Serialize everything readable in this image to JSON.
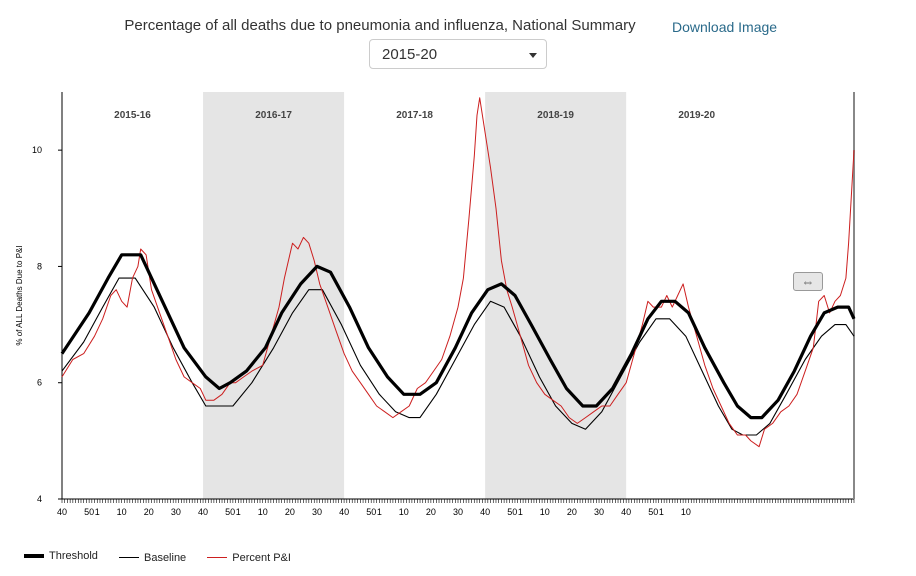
{
  "header": {
    "title": "Percentage of all deaths due to pneumonia and influenza, National Summary",
    "download_label": "Download Image",
    "season_select_value": "2015-20"
  },
  "legend": {
    "threshold": "Threshold",
    "baseline": "Baseline",
    "percent": "Percent P&I"
  },
  "handle_glyph": "⇔",
  "chart_data": {
    "type": "line",
    "ylabel": "% of ALL Deaths Due to P&I",
    "ylim": [
      4,
      11
    ],
    "yticks": [
      4,
      6,
      8,
      10
    ],
    "xticks_week_labels": [
      "40",
      "50",
      "1",
      "10",
      "20",
      "30",
      "40",
      "50",
      "1",
      "10",
      "20",
      "30",
      "40",
      "50",
      "1",
      "10",
      "20",
      "30",
      "40",
      "50",
      "1",
      "10",
      "20",
      "30",
      "40",
      "50",
      "1",
      "10"
    ],
    "seasons": [
      {
        "label": "2015-16",
        "shaded": false
      },
      {
        "label": "2016-17",
        "shaded": true
      },
      {
        "label": "2017-18",
        "shaded": false
      },
      {
        "label": "2018-19",
        "shaded": true
      },
      {
        "label": "2019-20",
        "shaded": false
      }
    ],
    "colors": {
      "threshold": "#000000",
      "baseline": "#000000",
      "percent": "#cc1f1f",
      "shade": "#e5e5e5"
    },
    "series": [
      {
        "name": "Threshold",
        "points": [
          [
            0,
            6.5
          ],
          [
            10,
            7.2
          ],
          [
            17,
            7.8
          ],
          [
            22,
            8.2
          ],
          [
            29,
            8.2
          ],
          [
            37,
            7.4
          ],
          [
            45,
            6.6
          ],
          [
            53,
            6.1
          ],
          [
            58,
            5.9
          ],
          [
            62,
            6.0
          ],
          [
            68,
            6.2
          ],
          [
            75,
            6.6
          ],
          [
            81,
            7.2
          ],
          [
            88,
            7.7
          ],
          [
            94,
            8.0
          ],
          [
            99,
            7.9
          ],
          [
            106,
            7.3
          ],
          [
            113,
            6.6
          ],
          [
            120,
            6.1
          ],
          [
            126,
            5.8
          ],
          [
            132,
            5.8
          ],
          [
            138,
            6.0
          ],
          [
            145,
            6.6
          ],
          [
            151,
            7.2
          ],
          [
            157,
            7.6
          ],
          [
            162,
            7.7
          ],
          [
            167,
            7.5
          ],
          [
            173,
            7.0
          ],
          [
            180,
            6.4
          ],
          [
            186,
            5.9
          ],
          [
            192,
            5.6
          ],
          [
            197,
            5.6
          ],
          [
            203,
            5.9
          ],
          [
            210,
            6.5
          ],
          [
            216,
            7.1
          ],
          [
            221,
            7.4
          ],
          [
            226,
            7.4
          ],
          [
            231,
            7.2
          ],
          [
            237,
            6.6
          ],
          [
            244,
            6.0
          ],
          [
            249,
            5.6
          ],
          [
            254,
            5.4
          ],
          [
            258,
            5.4
          ],
          [
            264,
            5.7
          ],
          [
            270,
            6.2
          ],
          [
            276,
            6.8
          ],
          [
            281,
            7.2
          ],
          [
            286,
            7.3
          ],
          [
            290,
            7.3
          ],
          [
            292,
            7.1
          ]
        ]
      },
      {
        "name": "Baseline",
        "points": [
          [
            0,
            6.2
          ],
          [
            8,
            6.7
          ],
          [
            15,
            7.3
          ],
          [
            21,
            7.8
          ],
          [
            27,
            7.8
          ],
          [
            34,
            7.3
          ],
          [
            41,
            6.6
          ],
          [
            48,
            6.0
          ],
          [
            53,
            5.6
          ],
          [
            63,
            5.6
          ],
          [
            70,
            6.0
          ],
          [
            78,
            6.6
          ],
          [
            85,
            7.2
          ],
          [
            91,
            7.6
          ],
          [
            96,
            7.6
          ],
          [
            103,
            7.0
          ],
          [
            110,
            6.3
          ],
          [
            117,
            5.8
          ],
          [
            123,
            5.5
          ],
          [
            128,
            5.4
          ],
          [
            132,
            5.4
          ],
          [
            138,
            5.8
          ],
          [
            145,
            6.4
          ],
          [
            152,
            7.0
          ],
          [
            158,
            7.4
          ],
          [
            163,
            7.3
          ],
          [
            169,
            6.8
          ],
          [
            176,
            6.1
          ],
          [
            182,
            5.6
          ],
          [
            188,
            5.3
          ],
          [
            193,
            5.2
          ],
          [
            199,
            5.5
          ],
          [
            206,
            6.1
          ],
          [
            213,
            6.7
          ],
          [
            219,
            7.1
          ],
          [
            224,
            7.1
          ],
          [
            230,
            6.8
          ],
          [
            236,
            6.2
          ],
          [
            242,
            5.6
          ],
          [
            247,
            5.2
          ],
          [
            251,
            5.1
          ],
          [
            256,
            5.1
          ],
          [
            261,
            5.3
          ],
          [
            267,
            5.8
          ],
          [
            274,
            6.4
          ],
          [
            280,
            6.8
          ],
          [
            285,
            7.0
          ],
          [
            289,
            7.0
          ],
          [
            292,
            6.8
          ]
        ]
      },
      {
        "name": "Percent P&I",
        "points": [
          [
            0,
            6.1
          ],
          [
            4,
            6.4
          ],
          [
            8,
            6.5
          ],
          [
            12,
            6.8
          ],
          [
            15,
            7.1
          ],
          [
            18,
            7.5
          ],
          [
            20,
            7.6
          ],
          [
            22,
            7.4
          ],
          [
            24,
            7.3
          ],
          [
            26,
            7.8
          ],
          [
            28,
            8.0
          ],
          [
            29,
            8.3
          ],
          [
            31,
            8.2
          ],
          [
            33,
            7.6
          ],
          [
            36,
            7.2
          ],
          [
            39,
            6.8
          ],
          [
            42,
            6.4
          ],
          [
            45,
            6.1
          ],
          [
            48,
            6.0
          ],
          [
            51,
            5.9
          ],
          [
            53,
            5.7
          ],
          [
            56,
            5.7
          ],
          [
            59,
            5.8
          ],
          [
            62,
            6.0
          ],
          [
            64,
            6.0
          ],
          [
            67,
            6.1
          ],
          [
            70,
            6.2
          ],
          [
            74,
            6.3
          ],
          [
            77,
            6.8
          ],
          [
            80,
            7.3
          ],
          [
            82,
            7.8
          ],
          [
            84,
            8.2
          ],
          [
            85,
            8.4
          ],
          [
            87,
            8.3
          ],
          [
            89,
            8.5
          ],
          [
            91,
            8.4
          ],
          [
            93,
            8.1
          ],
          [
            95,
            7.7
          ],
          [
            98,
            7.3
          ],
          [
            101,
            6.9
          ],
          [
            104,
            6.5
          ],
          [
            107,
            6.2
          ],
          [
            110,
            6.0
          ],
          [
            113,
            5.8
          ],
          [
            116,
            5.6
          ],
          [
            119,
            5.5
          ],
          [
            122,
            5.4
          ],
          [
            125,
            5.5
          ],
          [
            128,
            5.6
          ],
          [
            131,
            5.9
          ],
          [
            134,
            6.0
          ],
          [
            137,
            6.2
          ],
          [
            140,
            6.4
          ],
          [
            143,
            6.8
          ],
          [
            146,
            7.3
          ],
          [
            148,
            7.8
          ],
          [
            150,
            8.8
          ],
          [
            152,
            9.9
          ],
          [
            153,
            10.6
          ],
          [
            154,
            10.9
          ],
          [
            156,
            10.3
          ],
          [
            158,
            9.7
          ],
          [
            160,
            9.0
          ],
          [
            162,
            8.1
          ],
          [
            164,
            7.6
          ],
          [
            166,
            7.3
          ],
          [
            169,
            6.8
          ],
          [
            172,
            6.3
          ],
          [
            175,
            6.0
          ],
          [
            178,
            5.8
          ],
          [
            181,
            5.7
          ],
          [
            184,
            5.6
          ],
          [
            187,
            5.4
          ],
          [
            190,
            5.3
          ],
          [
            193,
            5.4
          ],
          [
            196,
            5.5
          ],
          [
            199,
            5.6
          ],
          [
            202,
            5.6
          ],
          [
            205,
            5.8
          ],
          [
            208,
            6.0
          ],
          [
            211,
            6.5
          ],
          [
            214,
            7.0
          ],
          [
            216,
            7.4
          ],
          [
            218,
            7.3
          ],
          [
            221,
            7.3
          ],
          [
            223,
            7.5
          ],
          [
            225,
            7.3
          ],
          [
            227,
            7.5
          ],
          [
            229,
            7.7
          ],
          [
            231,
            7.3
          ],
          [
            234,
            6.8
          ],
          [
            237,
            6.3
          ],
          [
            240,
            5.9
          ],
          [
            243,
            5.6
          ],
          [
            246,
            5.3
          ],
          [
            249,
            5.1
          ],
          [
            252,
            5.1
          ],
          [
            254,
            5.0
          ],
          [
            257,
            4.9
          ],
          [
            259,
            5.2
          ],
          [
            262,
            5.3
          ],
          [
            265,
            5.5
          ],
          [
            268,
            5.6
          ],
          [
            271,
            5.8
          ],
          [
            274,
            6.2
          ],
          [
            277,
            6.6
          ],
          [
            279,
            7.4
          ],
          [
            281,
            7.5
          ],
          [
            283,
            7.2
          ],
          [
            285,
            7.4
          ],
          [
            287,
            7.5
          ],
          [
            289,
            7.8
          ],
          [
            290,
            8.4
          ],
          [
            291,
            9.2
          ],
          [
            292,
            10.0
          ]
        ]
      }
    ]
  }
}
